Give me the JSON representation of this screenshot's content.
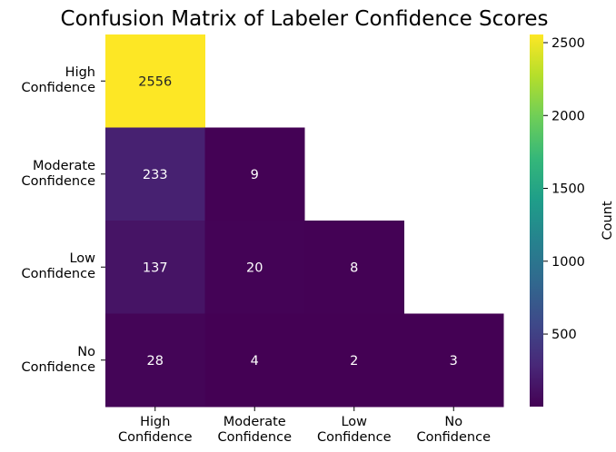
{
  "chart_data": {
    "type": "heatmap",
    "title": "Confusion Matrix of Labeler Confidence Scores",
    "x_categories": [
      "High\nConfidence",
      "Moderate\nConfidence",
      "Low\nConfidence",
      "No\nConfidence"
    ],
    "y_categories": [
      "High\nConfidence",
      "Moderate\nConfidence",
      "Low\nConfidence",
      "No\nConfidence"
    ],
    "values": [
      [
        2556,
        null,
        null,
        null
      ],
      [
        233,
        9,
        null,
        null
      ],
      [
        137,
        20,
        8,
        null
      ],
      [
        28,
        4,
        2,
        3
      ]
    ],
    "colormap": "viridis",
    "vlim": [
      2,
      2556
    ],
    "colorbar_ticks": [
      500,
      1000,
      1500,
      2000,
      2500
    ],
    "colorbar_label": "Count"
  }
}
